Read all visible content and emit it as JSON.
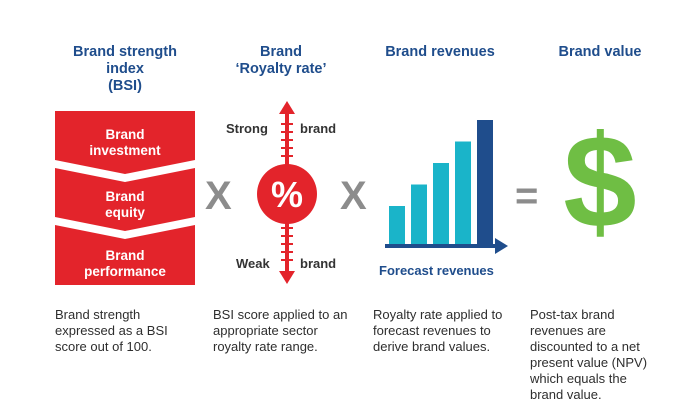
{
  "columns": [
    {
      "title_lines": [
        "Brand strength",
        "index",
        "(BSI)"
      ],
      "description_lines": [
        "Brand strength",
        "expressed as a BSI",
        "score out of 100."
      ]
    },
    {
      "title_lines": [
        "Brand",
        "‘Royalty rate’"
      ],
      "description_lines": [
        "BSI score applied to an",
        "appropriate sector",
        "royalty rate range."
      ]
    },
    {
      "title_lines": [
        "Brand revenues"
      ],
      "description_lines": [
        "Royalty rate applied to",
        "forecast revenues to",
        "derive brand values."
      ]
    },
    {
      "title_lines": [
        "Brand value"
      ],
      "description_lines": [
        "Post-tax brand",
        "revenues are",
        "discounted to a net",
        "present value (NPV)",
        "which equals the",
        "brand value."
      ]
    }
  ],
  "bsi_stack": [
    {
      "lines": [
        "Brand",
        "investment"
      ]
    },
    {
      "lines": [
        "Brand",
        "equity"
      ]
    },
    {
      "lines": [
        "Brand",
        "performance"
      ]
    }
  ],
  "operators": {
    "multiply_1": "X",
    "multiply_2": "X",
    "equals": "="
  },
  "royalty": {
    "percent_symbol": "%",
    "strong_label": "Strong",
    "weak_label": "Weak",
    "brand_label_top": "brand",
    "brand_label_bottom": "brand"
  },
  "revenues_chart": {
    "x_axis_label": "Forecast revenues",
    "bar_values": [
      1,
      2,
      3,
      4,
      5
    ]
  },
  "value_symbol": "$",
  "colors": {
    "title_blue": "#1f4d8c",
    "red": "#e3242b",
    "teal": "#1ab4c9",
    "navy": "#1f4d8c",
    "green": "#6fbe44",
    "gray": "#8c8c8c"
  }
}
